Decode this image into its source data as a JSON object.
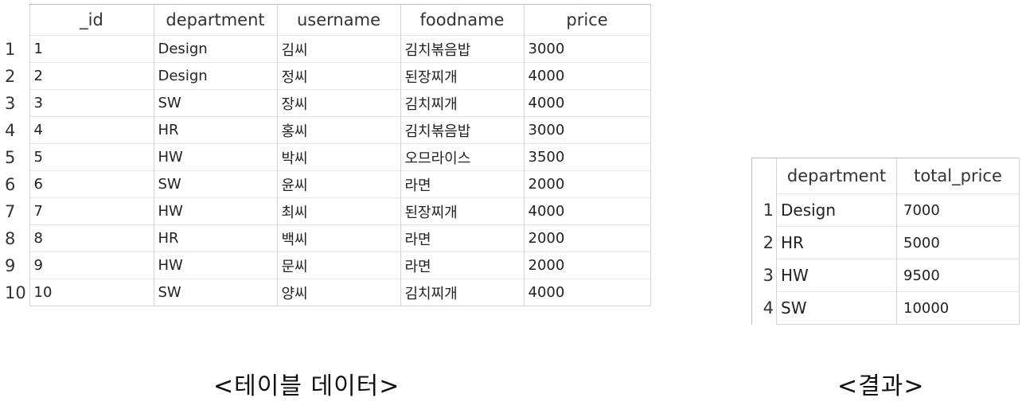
{
  "table_data": {
    "columns": [
      "_id",
      "department",
      "username",
      "foodname",
      "price"
    ],
    "rows": [
      {
        "num": "1",
        "cells": [
          "1",
          "Design",
          "김씨",
          "김치볶음밥",
          "3000"
        ]
      },
      {
        "num": "2",
        "cells": [
          "2",
          "Design",
          "정씨",
          "된장찌개",
          "4000"
        ]
      },
      {
        "num": "3",
        "cells": [
          "3",
          "SW",
          "장씨",
          "김치찌개",
          "4000"
        ]
      },
      {
        "num": "4",
        "cells": [
          "4",
          "HR",
          "홍씨",
          "김치볶음밥",
          "3000"
        ]
      },
      {
        "num": "5",
        "cells": [
          "5",
          "HW",
          "박씨",
          "오므라이스",
          "3500"
        ]
      },
      {
        "num": "6",
        "cells": [
          "6",
          "SW",
          "윤씨",
          "라면",
          "2000"
        ]
      },
      {
        "num": "7",
        "cells": [
          "7",
          "HW",
          "최씨",
          "된장찌개",
          "4000"
        ]
      },
      {
        "num": "8",
        "cells": [
          "8",
          "HR",
          "백씨",
          "라면",
          "2000"
        ]
      },
      {
        "num": "9",
        "cells": [
          "9",
          "HW",
          "문씨",
          "라면",
          "2000"
        ]
      },
      {
        "num": "10",
        "cells": [
          "10",
          "SW",
          "양씨",
          "김치찌개",
          "4000"
        ]
      }
    ]
  },
  "result_data": {
    "columns": [
      "department",
      "total_price"
    ],
    "rows": [
      {
        "num": "1",
        "cells": [
          "Design",
          "7000"
        ]
      },
      {
        "num": "2",
        "cells": [
          "HR",
          "5000"
        ]
      },
      {
        "num": "3",
        "cells": [
          "HW",
          "9500"
        ]
      },
      {
        "num": "4",
        "cells": [
          "SW",
          "10000"
        ]
      }
    ]
  },
  "captions": {
    "left": "<테이블 데이터>",
    "right": "<결과>"
  },
  "icons": {
    "sort": "sort-ascending-icon"
  }
}
